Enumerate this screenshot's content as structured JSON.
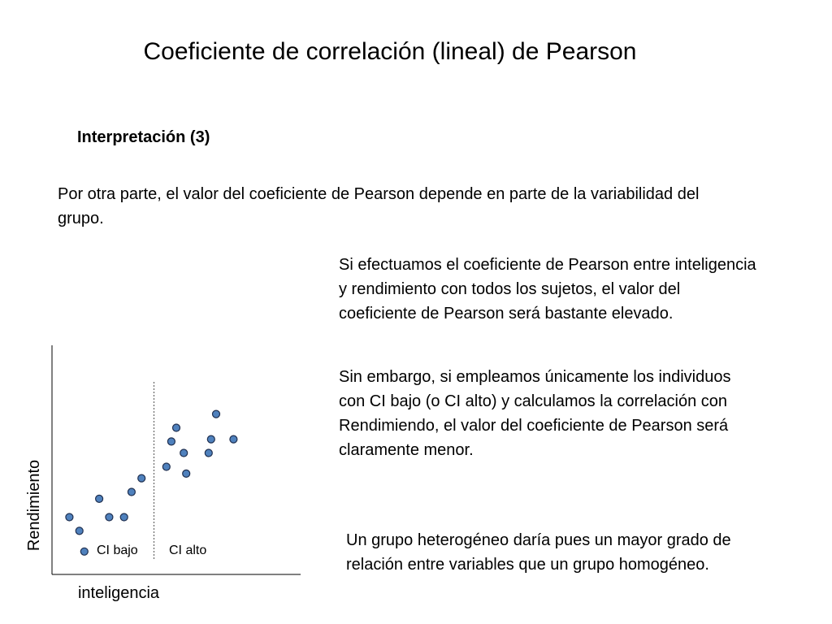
{
  "slide": {
    "title": "Coeficiente de correlación (lineal) de Pearson",
    "subtitle": "Interpretación (3)",
    "paragraph_1": "Por otra parte, el valor del coeficiente de Pearson depende en parte de la variabilidad del grupo.",
    "paragraph_2": "Si efectuamos el coeficiente de Pearson entre inteligencia y rendimiento con todos los sujetos, el valor del coeficiente de Pearson será bastante elevado.",
    "paragraph_3": "Sin embargo, si empleamos únicamente los individuos con CI bajo (o CI alto) y calculamos la correlación con Rendimiendo, el valor del coeficiente de Pearson será claramente menor.",
    "paragraph_4": "Un grupo heterogéneo daría pues un mayor grado de relación entre variables que un grupo homogéneo."
  },
  "chart_data": {
    "type": "scatter",
    "title": "",
    "xlabel": "inteligencia",
    "ylabel": "Rendimiento",
    "xlim": [
      0,
      100
    ],
    "ylim": [
      0,
      100
    ],
    "grid": false,
    "divider_x": 41,
    "group_labels": [
      "CI bajo",
      "CI alto"
    ],
    "marker_fill": "#4f81bd",
    "marker_stroke": "#1f2f4f",
    "series": [
      {
        "x": [
          7,
          11,
          13,
          19,
          23,
          29,
          32,
          36
        ],
        "y": [
          25,
          19,
          10,
          33,
          25,
          25,
          36,
          42
        ]
      },
      {
        "x": [
          46,
          48,
          50,
          53,
          54,
          63,
          64,
          66,
          73
        ],
        "y": [
          47,
          58,
          64,
          53,
          44,
          53,
          59,
          70,
          59
        ]
      }
    ]
  }
}
